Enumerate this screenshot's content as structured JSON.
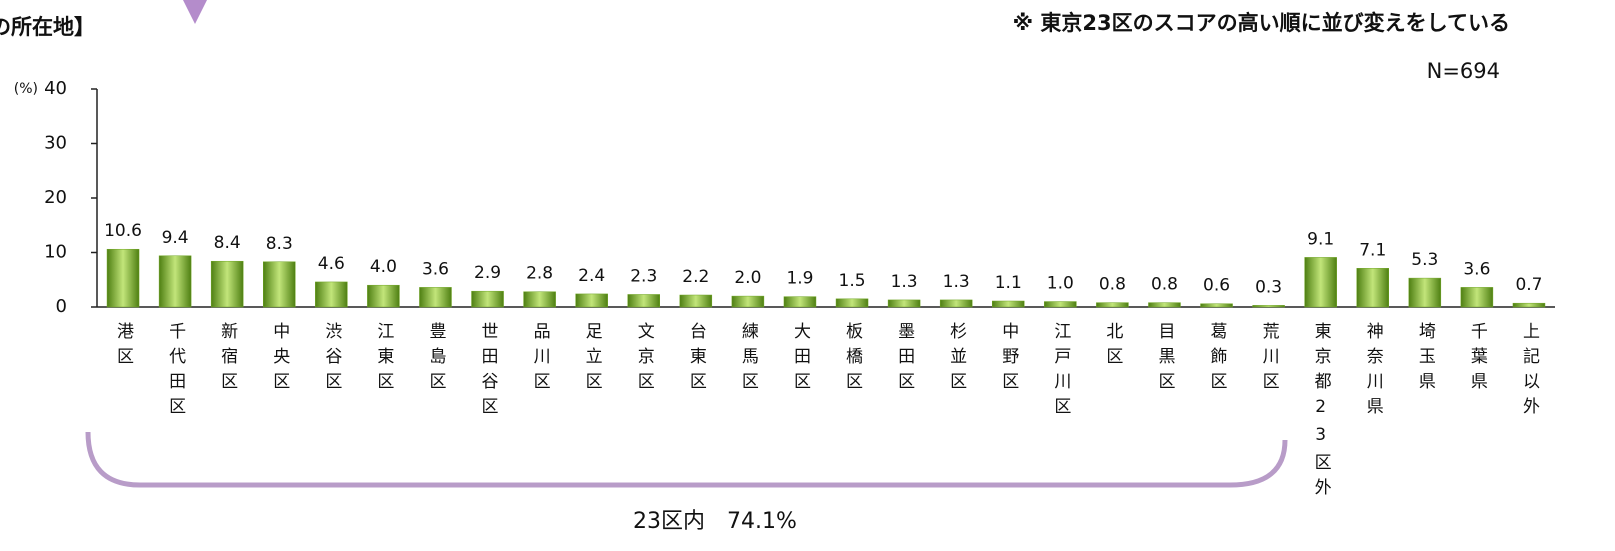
{
  "title": "の所在地】",
  "note": "※ 東京23区のスコアの高い順に並び変えをしている",
  "n_label": "N=694",
  "chart_data": {
    "type": "bar",
    "y_label": "(%)",
    "annotation": "23区内　74.1%",
    "categories": [
      "港区",
      "千代田区",
      "新宿区",
      "中央区",
      "渋谷区",
      "江東区",
      "豊島区",
      "世田谷区",
      "品川区",
      "足立区",
      "文京区",
      "台東区",
      "練馬区",
      "大田区",
      "板橋区",
      "墨田区",
      "杉並区",
      "中野区",
      "江戸川区",
      "北区",
      "目黒区",
      "葛飾区",
      "荒川区",
      "東京都23区外",
      "神奈川県",
      "埼玉県",
      "千葉県",
      "上記以外"
    ],
    "values": [
      10.6,
      9.4,
      8.4,
      8.3,
      4.6,
      4.0,
      3.6,
      2.9,
      2.8,
      2.4,
      2.3,
      2.2,
      2.0,
      1.9,
      1.5,
      1.3,
      1.3,
      1.1,
      1.0,
      0.8,
      0.8,
      0.6,
      0.3,
      9.1,
      7.1,
      5.3,
      3.6,
      0.7
    ],
    "value_labels": [
      "10.6",
      "9.4",
      "8.4",
      "8.3",
      "4.6",
      "4.0",
      "3.6",
      "2.9",
      "2.8",
      "2.4",
      "2.3",
      "2.2",
      "2.0",
      "1.9",
      "1.5",
      "1.3",
      "1.3",
      "1.1",
      "1.0",
      "0.8",
      "0.8",
      "0.6",
      "0.3",
      "9.1",
      "7.1",
      "5.3",
      "3.6",
      "0.7"
    ],
    "color": "#6fa523",
    "ylim": [
      0,
      40
    ],
    "yticks": [
      0,
      10,
      20,
      30,
      40
    ]
  }
}
